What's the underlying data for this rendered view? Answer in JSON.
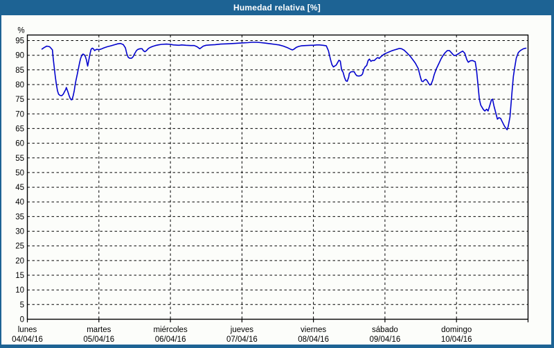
{
  "window": {
    "title": "Humedad relativa [%]"
  },
  "theme": {
    "titlebar_bg": "#1d6394",
    "border_color": "#1d6394",
    "panel_bg": "#fcfdfa",
    "grid_color": "#000000",
    "frame_color": "#000000",
    "line_color": "#0000cd",
    "text_color": "#000000",
    "title_text_color": "#ffffff"
  },
  "chart_data": {
    "type": "line",
    "title": "Humedad relativa [%]",
    "ylabel": "%",
    "unit": "%",
    "ylim": [
      0,
      97
    ],
    "yticks": [
      95,
      90,
      85,
      80,
      75,
      70,
      65,
      60,
      55,
      50,
      45,
      40,
      35,
      30,
      25,
      20,
      15,
      10,
      5,
      0
    ],
    "grid": "dashed horizontal every 5%, dashed vertical every day",
    "legend_position": "none",
    "x_unit": "days, 0 = lunes 04/04/16 00:00",
    "x_days": [
      {
        "name": "lunes",
        "date": "04/04/16"
      },
      {
        "name": "martes",
        "date": "05/04/16"
      },
      {
        "name": "miércoles",
        "date": "06/04/16"
      },
      {
        "name": "jueves",
        "date": "07/04/16"
      },
      {
        "name": "viernes",
        "date": "08/04/16"
      },
      {
        "name": "sábado",
        "date": "09/04/16"
      },
      {
        "name": "domingo",
        "date": "10/04/16"
      }
    ],
    "series": [
      {
        "name": "Humedad relativa",
        "color": "#0000cd",
        "points": [
          [
            0.204,
            92.1
          ],
          [
            0.233,
            92.6
          ],
          [
            0.272,
            93.1
          ],
          [
            0.311,
            92.9
          ],
          [
            0.33,
            92.4
          ],
          [
            0.35,
            91.8
          ],
          [
            0.36,
            89.2
          ],
          [
            0.375,
            86.1
          ],
          [
            0.389,
            83.0
          ],
          [
            0.405,
            80.2
          ],
          [
            0.421,
            77.9
          ],
          [
            0.437,
            76.7
          ],
          [
            0.457,
            76.3
          ],
          [
            0.48,
            76.2
          ],
          [
            0.502,
            76.7
          ],
          [
            0.518,
            77.5
          ],
          [
            0.535,
            78.3
          ],
          [
            0.545,
            79.0
          ],
          [
            0.567,
            77.5
          ],
          [
            0.583,
            76.3
          ],
          [
            0.6,
            75.2
          ],
          [
            0.615,
            74.8
          ],
          [
            0.625,
            74.9
          ],
          [
            0.642,
            76.3
          ],
          [
            0.655,
            77.9
          ],
          [
            0.668,
            79.9
          ],
          [
            0.68,
            81.4
          ],
          [
            0.697,
            83.4
          ],
          [
            0.729,
            87.3
          ],
          [
            0.745,
            88.9
          ],
          [
            0.762,
            90.0
          ],
          [
            0.778,
            90.4
          ],
          [
            0.794,
            90.2
          ],
          [
            0.81,
            89.6
          ],
          [
            0.826,
            88.4
          ],
          [
            0.843,
            86.3
          ],
          [
            0.86,
            88.4
          ],
          [
            0.875,
            90.4
          ],
          [
            0.891,
            92.0
          ],
          [
            0.907,
            92.4
          ],
          [
            0.923,
            92.2
          ],
          [
            0.94,
            91.6
          ],
          [
            0.966,
            92.0
          ],
          [
            1.0,
            91.9
          ],
          [
            1.031,
            92.1
          ],
          [
            1.069,
            92.5
          ],
          [
            1.118,
            92.9
          ],
          [
            1.167,
            93.2
          ],
          [
            1.225,
            93.6
          ],
          [
            1.264,
            93.9
          ],
          [
            1.303,
            94.0
          ],
          [
            1.342,
            93.6
          ],
          [
            1.371,
            92.5
          ],
          [
            1.39,
            90.5
          ],
          [
            1.41,
            89.3
          ],
          [
            1.429,
            89.0
          ],
          [
            1.458,
            89.0
          ],
          [
            1.478,
            89.5
          ],
          [
            1.497,
            90.4
          ],
          [
            1.526,
            91.6
          ],
          [
            1.546,
            92.0
          ],
          [
            1.575,
            92.2
          ],
          [
            1.604,
            92.2
          ],
          [
            1.624,
            91.5
          ],
          [
            1.643,
            91.2
          ],
          [
            1.662,
            91.5
          ],
          [
            1.692,
            92.3
          ],
          [
            1.721,
            92.7
          ],
          [
            1.75,
            93.0
          ],
          [
            1.789,
            93.3
          ],
          [
            1.828,
            93.5
          ],
          [
            1.876,
            93.7
          ],
          [
            1.944,
            93.8
          ],
          [
            2.003,
            93.7
          ],
          [
            2.042,
            93.5
          ],
          [
            2.119,
            93.4
          ],
          [
            2.158,
            93.5
          ],
          [
            2.217,
            93.4
          ],
          [
            2.285,
            93.3
          ],
          [
            2.333,
            93.3
          ],
          [
            2.372,
            92.9
          ],
          [
            2.411,
            92.2
          ],
          [
            2.431,
            92.6
          ],
          [
            2.46,
            93.1
          ],
          [
            2.499,
            93.4
          ],
          [
            2.557,
            93.5
          ],
          [
            2.625,
            93.6
          ],
          [
            2.703,
            93.8
          ],
          [
            2.8,
            93.9
          ],
          [
            2.887,
            94.0
          ],
          [
            3.0,
            94.2
          ],
          [
            3.082,
            94.3
          ],
          [
            3.14,
            94.4
          ],
          [
            3.208,
            94.4
          ],
          [
            3.267,
            94.3
          ],
          [
            3.335,
            94.1
          ],
          [
            3.403,
            93.9
          ],
          [
            3.461,
            93.7
          ],
          [
            3.519,
            93.5
          ],
          [
            3.578,
            93.1
          ],
          [
            3.636,
            92.6
          ],
          [
            3.675,
            92.1
          ],
          [
            3.704,
            91.8
          ],
          [
            3.724,
            92.0
          ],
          [
            3.762,
            92.7
          ],
          [
            3.792,
            93.0
          ],
          [
            3.83,
            93.2
          ],
          [
            3.889,
            93.3
          ],
          [
            3.967,
            93.4
          ],
          [
            4.0,
            93.4
          ],
          [
            4.044,
            93.5
          ],
          [
            4.083,
            93.5
          ],
          [
            4.132,
            93.4
          ],
          [
            4.18,
            93.2
          ],
          [
            4.21,
            91.5
          ],
          [
            4.239,
            88.5
          ],
          [
            4.258,
            86.8
          ],
          [
            4.278,
            86.0
          ],
          [
            4.297,
            86.3
          ],
          [
            4.317,
            86.6
          ],
          [
            4.336,
            87.4
          ],
          [
            4.356,
            88.3
          ],
          [
            4.375,
            88.0
          ],
          [
            4.394,
            85.0
          ],
          [
            4.414,
            84.2
          ],
          [
            4.433,
            82.5
          ],
          [
            4.453,
            81.3
          ],
          [
            4.472,
            81.1
          ],
          [
            4.492,
            82.5
          ],
          [
            4.501,
            83.8
          ],
          [
            4.521,
            84.3
          ],
          [
            4.54,
            84.4
          ],
          [
            4.569,
            84.4
          ],
          [
            4.589,
            83.5
          ],
          [
            4.608,
            83.0
          ],
          [
            4.637,
            82.9
          ],
          [
            4.667,
            83.1
          ],
          [
            4.686,
            83.6
          ],
          [
            4.705,
            85.3
          ],
          [
            4.725,
            86.1
          ],
          [
            4.744,
            86.5
          ],
          [
            4.764,
            88.2
          ],
          [
            4.783,
            88.7
          ],
          [
            4.803,
            87.9
          ],
          [
            4.822,
            88.2
          ],
          [
            4.851,
            88.2
          ],
          [
            4.88,
            88.9
          ],
          [
            4.9,
            89.2
          ],
          [
            4.919,
            88.9
          ],
          [
            4.939,
            89.4
          ],
          [
            4.978,
            90.2
          ],
          [
            5.0,
            90.5
          ],
          [
            5.026,
            90.8
          ],
          [
            5.056,
            91.1
          ],
          [
            5.094,
            91.5
          ],
          [
            5.133,
            91.8
          ],
          [
            5.172,
            92.1
          ],
          [
            5.201,
            92.3
          ],
          [
            5.231,
            92.2
          ],
          [
            5.269,
            91.7
          ],
          [
            5.308,
            90.8
          ],
          [
            5.347,
            89.8
          ],
          [
            5.386,
            88.6
          ],
          [
            5.425,
            87.3
          ],
          [
            5.464,
            85.5
          ],
          [
            5.493,
            82.8
          ],
          [
            5.512,
            81.2
          ],
          [
            5.532,
            81.0
          ],
          [
            5.551,
            81.5
          ],
          [
            5.571,
            81.8
          ],
          [
            5.59,
            81.3
          ],
          [
            5.61,
            80.4
          ],
          [
            5.629,
            79.8
          ],
          [
            5.648,
            80.3
          ],
          [
            5.668,
            81.5
          ],
          [
            5.687,
            83.3
          ],
          [
            5.717,
            85.3
          ],
          [
            5.756,
            87.3
          ],
          [
            5.785,
            88.8
          ],
          [
            5.814,
            90.0
          ],
          [
            5.843,
            90.9
          ],
          [
            5.872,
            91.6
          ],
          [
            5.901,
            91.6
          ],
          [
            5.931,
            90.8
          ],
          [
            5.96,
            90.0
          ],
          [
            5.979,
            89.9
          ],
          [
            6.0,
            90.1
          ],
          [
            6.028,
            90.5
          ],
          [
            6.057,
            91.0
          ],
          [
            6.086,
            91.4
          ],
          [
            6.115,
            90.7
          ],
          [
            6.144,
            88.5
          ],
          [
            6.164,
            87.6
          ],
          [
            6.193,
            88.1
          ],
          [
            6.222,
            88.2
          ],
          [
            6.242,
            88.0
          ],
          [
            6.261,
            87.8
          ],
          [
            6.28,
            85.0
          ],
          [
            6.3,
            80.0
          ],
          [
            6.319,
            75.0
          ],
          [
            6.339,
            73.0
          ],
          [
            6.363,
            72.0
          ],
          [
            6.378,
            71.4
          ],
          [
            6.397,
            71.0
          ],
          [
            6.421,
            71.6
          ],
          [
            6.441,
            71.0
          ],
          [
            6.465,
            72.8
          ],
          [
            6.489,
            74.8
          ],
          [
            6.504,
            75.0
          ],
          [
            6.523,
            72.8
          ],
          [
            6.543,
            70.9
          ],
          [
            6.572,
            68.2
          ],
          [
            6.591,
            68.7
          ],
          [
            6.616,
            68.5
          ],
          [
            6.64,
            67.3
          ],
          [
            6.669,
            65.9
          ],
          [
            6.689,
            65.1
          ],
          [
            6.708,
            64.6
          ],
          [
            6.723,
            65.8
          ],
          [
            6.747,
            68.9
          ],
          [
            6.767,
            74.7
          ],
          [
            6.781,
            79.0
          ],
          [
            6.796,
            82.9
          ],
          [
            6.815,
            86.0
          ],
          [
            6.835,
            89.0
          ],
          [
            6.864,
            90.9
          ],
          [
            6.893,
            91.6
          ],
          [
            6.927,
            92.1
          ],
          [
            6.951,
            92.3
          ],
          [
            6.971,
            92.4
          ]
        ]
      }
    ]
  }
}
